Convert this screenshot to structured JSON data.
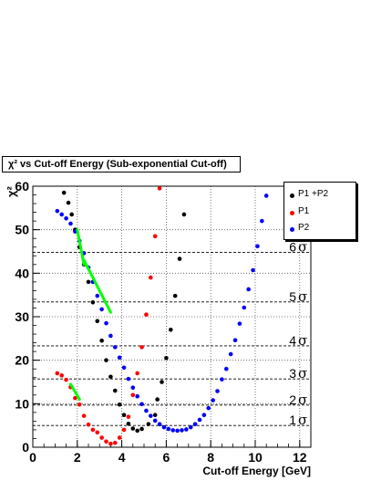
{
  "chart_data": {
    "type": "scatter",
    "title": "χ² vs Cut-off Energy (Sub-exponential Cut-off)",
    "xlabel": "Cut-off Energy [GeV]",
    "ylabel": "χ²",
    "xlim": [
      0,
      12.5
    ],
    "ylim": [
      0,
      60
    ],
    "x_ticks": [
      "0",
      "2",
      "4",
      "6",
      "8",
      "10",
      "12"
    ],
    "y_ticks": [
      "0",
      "10",
      "20",
      "30",
      "40",
      "50",
      "60"
    ],
    "grid": true,
    "legend_position": "top-right",
    "colors": {
      "p1p2": "#000000",
      "p1": "#ff0000",
      "p2": "#0000ff",
      "fit": "#00ff00"
    },
    "series": [
      {
        "name": "P1 +P2",
        "color": "#000000",
        "points": [
          [
            1.4,
            58.5
          ],
          [
            1.6,
            56.2
          ],
          [
            1.75,
            53.5
          ],
          [
            1.9,
            50.0
          ],
          [
            2.1,
            46.0
          ],
          [
            2.3,
            42.0
          ],
          [
            2.5,
            38.0
          ],
          [
            2.7,
            33.3
          ],
          [
            2.9,
            29.0
          ],
          [
            3.1,
            24.5
          ],
          [
            3.3,
            20.0
          ],
          [
            3.5,
            16.2
          ],
          [
            3.7,
            13.0
          ],
          [
            3.9,
            9.8
          ],
          [
            4.1,
            7.4
          ],
          [
            4.3,
            5.4
          ],
          [
            4.5,
            4.3
          ],
          [
            4.7,
            3.8
          ],
          [
            4.9,
            4.2
          ],
          [
            5.2,
            5.3
          ],
          [
            5.5,
            7.4
          ],
          [
            5.6,
            11.0
          ],
          [
            5.8,
            15.0
          ],
          [
            6.0,
            20.5
          ],
          [
            6.2,
            27.0
          ],
          [
            6.4,
            34.8
          ],
          [
            6.6,
            43.3
          ],
          [
            6.8,
            53.5
          ]
        ]
      },
      {
        "name": "P1",
        "color": "#ff0000",
        "points": [
          [
            1.1,
            17.0
          ],
          [
            1.3,
            16.5
          ],
          [
            1.5,
            15.5
          ],
          [
            1.7,
            13.8
          ],
          [
            1.9,
            11.3
          ],
          [
            2.1,
            9.8
          ],
          [
            2.3,
            7.2
          ],
          [
            2.5,
            5.2
          ],
          [
            2.7,
            4.0
          ],
          [
            2.9,
            3.4
          ],
          [
            3.1,
            2.2
          ],
          [
            3.3,
            1.3
          ],
          [
            3.5,
            0.8
          ],
          [
            3.7,
            1.0
          ],
          [
            3.9,
            2.2
          ],
          [
            4.1,
            4.0
          ],
          [
            4.3,
            7.0
          ],
          [
            4.5,
            12.0
          ],
          [
            4.7,
            17.0
          ],
          [
            4.9,
            23.0
          ],
          [
            5.1,
            30.5
          ],
          [
            5.3,
            39.0
          ],
          [
            5.5,
            48.5
          ],
          [
            5.7,
            59.5
          ]
        ]
      },
      {
        "name": "P2",
        "color": "#0000ff",
        "points": [
          [
            1.1,
            54.3
          ],
          [
            1.3,
            53.5
          ],
          [
            1.5,
            52.6
          ],
          [
            1.7,
            51.4
          ],
          [
            1.9,
            49.6
          ],
          [
            2.1,
            47.4
          ],
          [
            2.3,
            44.6
          ],
          [
            2.5,
            41.3
          ],
          [
            2.7,
            38.0
          ],
          [
            2.9,
            34.8
          ],
          [
            3.1,
            31.7
          ],
          [
            3.3,
            28.5
          ],
          [
            3.5,
            25.6
          ],
          [
            3.7,
            23.0
          ],
          [
            3.9,
            20.6
          ],
          [
            4.1,
            18.3
          ],
          [
            4.3,
            15.7
          ],
          [
            4.5,
            13.7
          ],
          [
            4.7,
            11.7
          ],
          [
            4.9,
            9.9
          ],
          [
            5.1,
            8.4
          ],
          [
            5.3,
            7.2
          ],
          [
            5.5,
            6.1
          ],
          [
            5.7,
            5.3
          ],
          [
            5.9,
            4.6
          ],
          [
            6.1,
            4.2
          ],
          [
            6.3,
            3.9
          ],
          [
            6.5,
            3.8
          ],
          [
            6.7,
            3.9
          ],
          [
            6.9,
            4.1
          ],
          [
            7.1,
            4.6
          ],
          [
            7.3,
            5.3
          ],
          [
            7.5,
            6.3
          ],
          [
            7.7,
            7.4
          ],
          [
            7.9,
            9.0
          ],
          [
            8.1,
            10.8
          ],
          [
            8.3,
            12.9
          ],
          [
            8.5,
            15.6
          ],
          [
            8.7,
            18.0
          ],
          [
            8.9,
            21.4
          ],
          [
            9.1,
            24.6
          ],
          [
            9.3,
            28.4
          ],
          [
            9.5,
            32.1
          ],
          [
            9.7,
            36.3
          ],
          [
            9.9,
            40.7
          ],
          [
            10.1,
            46.2
          ],
          [
            10.3,
            52.0
          ],
          [
            10.5,
            57.8
          ]
        ]
      }
    ],
    "fit_lines": [
      {
        "from": [
          2.0,
          50.0
        ],
        "to": [
          2.3,
          42.0
        ]
      },
      {
        "from": [
          2.3,
          43.0
        ],
        "to": [
          3.5,
          31.0
        ]
      },
      {
        "from": [
          1.7,
          14.5
        ],
        "to": [
          2.1,
          11.0
        ]
      }
    ],
    "reference_lines": [
      {
        "y": 5.0,
        "label": "1",
        "unit": "σ"
      },
      {
        "y": 9.7,
        "label": "2",
        "unit": "σ"
      },
      {
        "y": 15.7,
        "label": "3",
        "unit": "σ"
      },
      {
        "y": 23.3,
        "label": "4",
        "unit": "σ"
      },
      {
        "y": 33.4,
        "label": "5",
        "unit": "σ"
      },
      {
        "y": 44.8,
        "label": "6",
        "unit": "σ"
      }
    ]
  }
}
